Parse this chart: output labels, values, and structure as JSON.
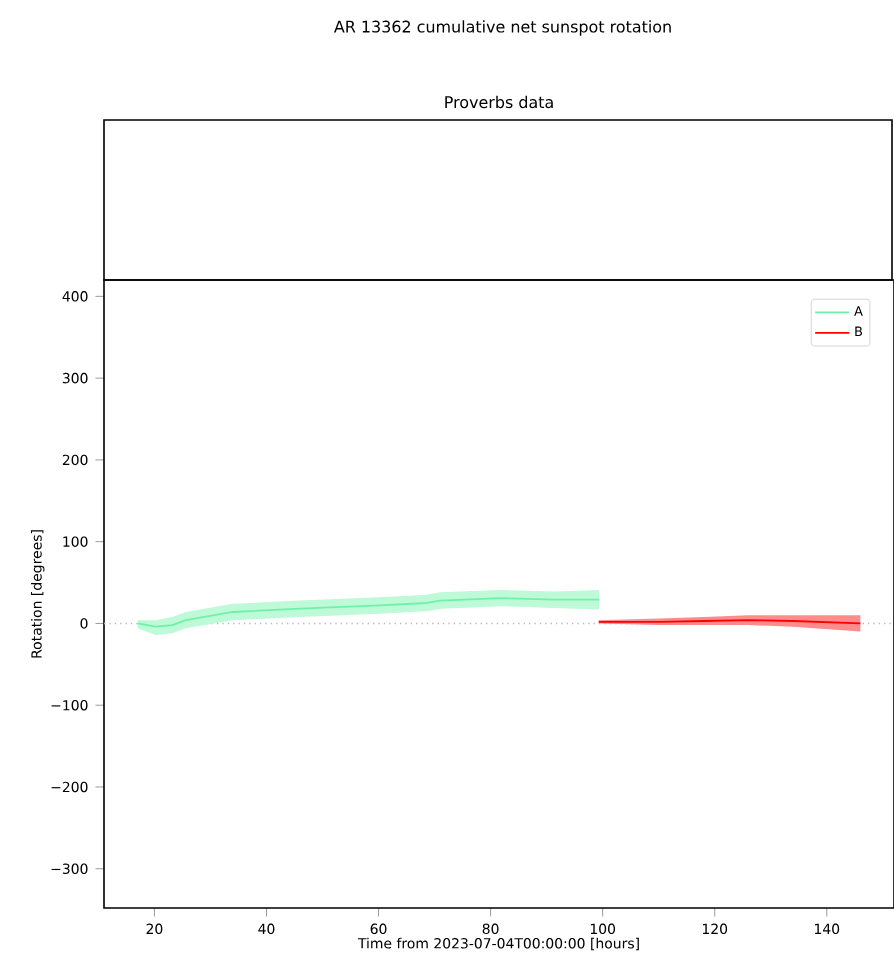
{
  "chart_data": [
    {
      "type": "other",
      "title": "AR 13362 cumulative net sunspot rotation",
      "subtitle": "Proverbs data"
    },
    {
      "type": "line",
      "xlabel": "Time from 2023-07-04T00:00:00 [hours]",
      "ylabel": "Rotation [degrees]",
      "xlim": [
        11,
        152
      ],
      "ylim": [
        -348,
        420
      ],
      "xticks": [
        20,
        40,
        60,
        80,
        100,
        120,
        140
      ],
      "yticks": [
        {
          "value": -300,
          "label": "−300"
        },
        {
          "value": -200,
          "label": "−200"
        },
        {
          "value": -100,
          "label": "−100"
        },
        0,
        100,
        200,
        300,
        400
      ],
      "legend": "top right",
      "marker": "none",
      "line_style": "solid",
      "grid": false,
      "ref_lines": [
        {
          "axis": "y",
          "value": 0,
          "color": "#bbbbbb",
          "line_style": "dotted"
        }
      ],
      "series": [
        {
          "name": "A",
          "color": "#6ef2a8",
          "x": [
            17,
            20.2,
            23.2,
            25.6,
            34,
            45.9,
            60.2,
            68.6,
            71,
            81.8,
            86.5,
            91.3,
            99.4
          ],
          "values": [
            0,
            -4,
            -2,
            4,
            14,
            18,
            22,
            25,
            28,
            31,
            30,
            29,
            29
          ],
          "lower": [
            -6,
            -14,
            -12,
            -6,
            4,
            8,
            12,
            15,
            18,
            21,
            20,
            19,
            17
          ],
          "upper": [
            4,
            4,
            8,
            14,
            24,
            28,
            32,
            35,
            38,
            41,
            40,
            39,
            41
          ]
        },
        {
          "name": "B",
          "color": "#ff0000",
          "x": [
            99.3,
            110,
            118,
            126,
            134,
            146
          ],
          "values": [
            2,
            2,
            3,
            4,
            3,
            0
          ],
          "lower": [
            0,
            -2,
            -2,
            -2,
            -4,
            -10
          ],
          "upper": [
            4,
            6,
            8,
            10,
            10,
            10
          ]
        }
      ]
    }
  ]
}
